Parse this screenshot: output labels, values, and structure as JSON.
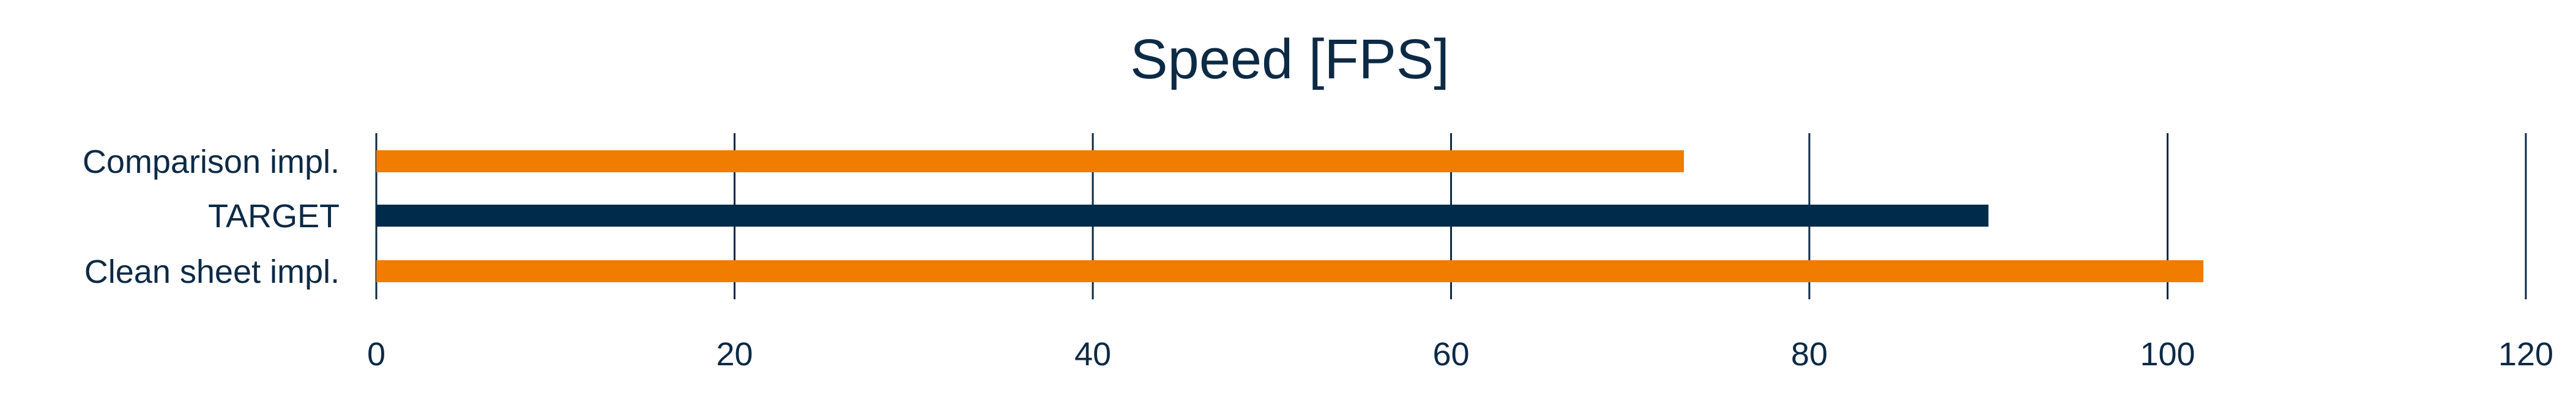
{
  "chart_data": {
    "type": "bar",
    "orientation": "horizontal",
    "title": "Speed [FPS]",
    "xlabel": "",
    "ylabel": "",
    "categories": [
      "Comparison impl.",
      "TARGET",
      "Clean sheet impl."
    ],
    "values": [
      73,
      90,
      102
    ],
    "colors": [
      "#f07c00",
      "#012b4a",
      "#f07c00"
    ],
    "xlim": [
      0,
      120
    ],
    "xticks": [
      0,
      20,
      40,
      60,
      80,
      100,
      120
    ],
    "grid": true,
    "legend": "none"
  }
}
